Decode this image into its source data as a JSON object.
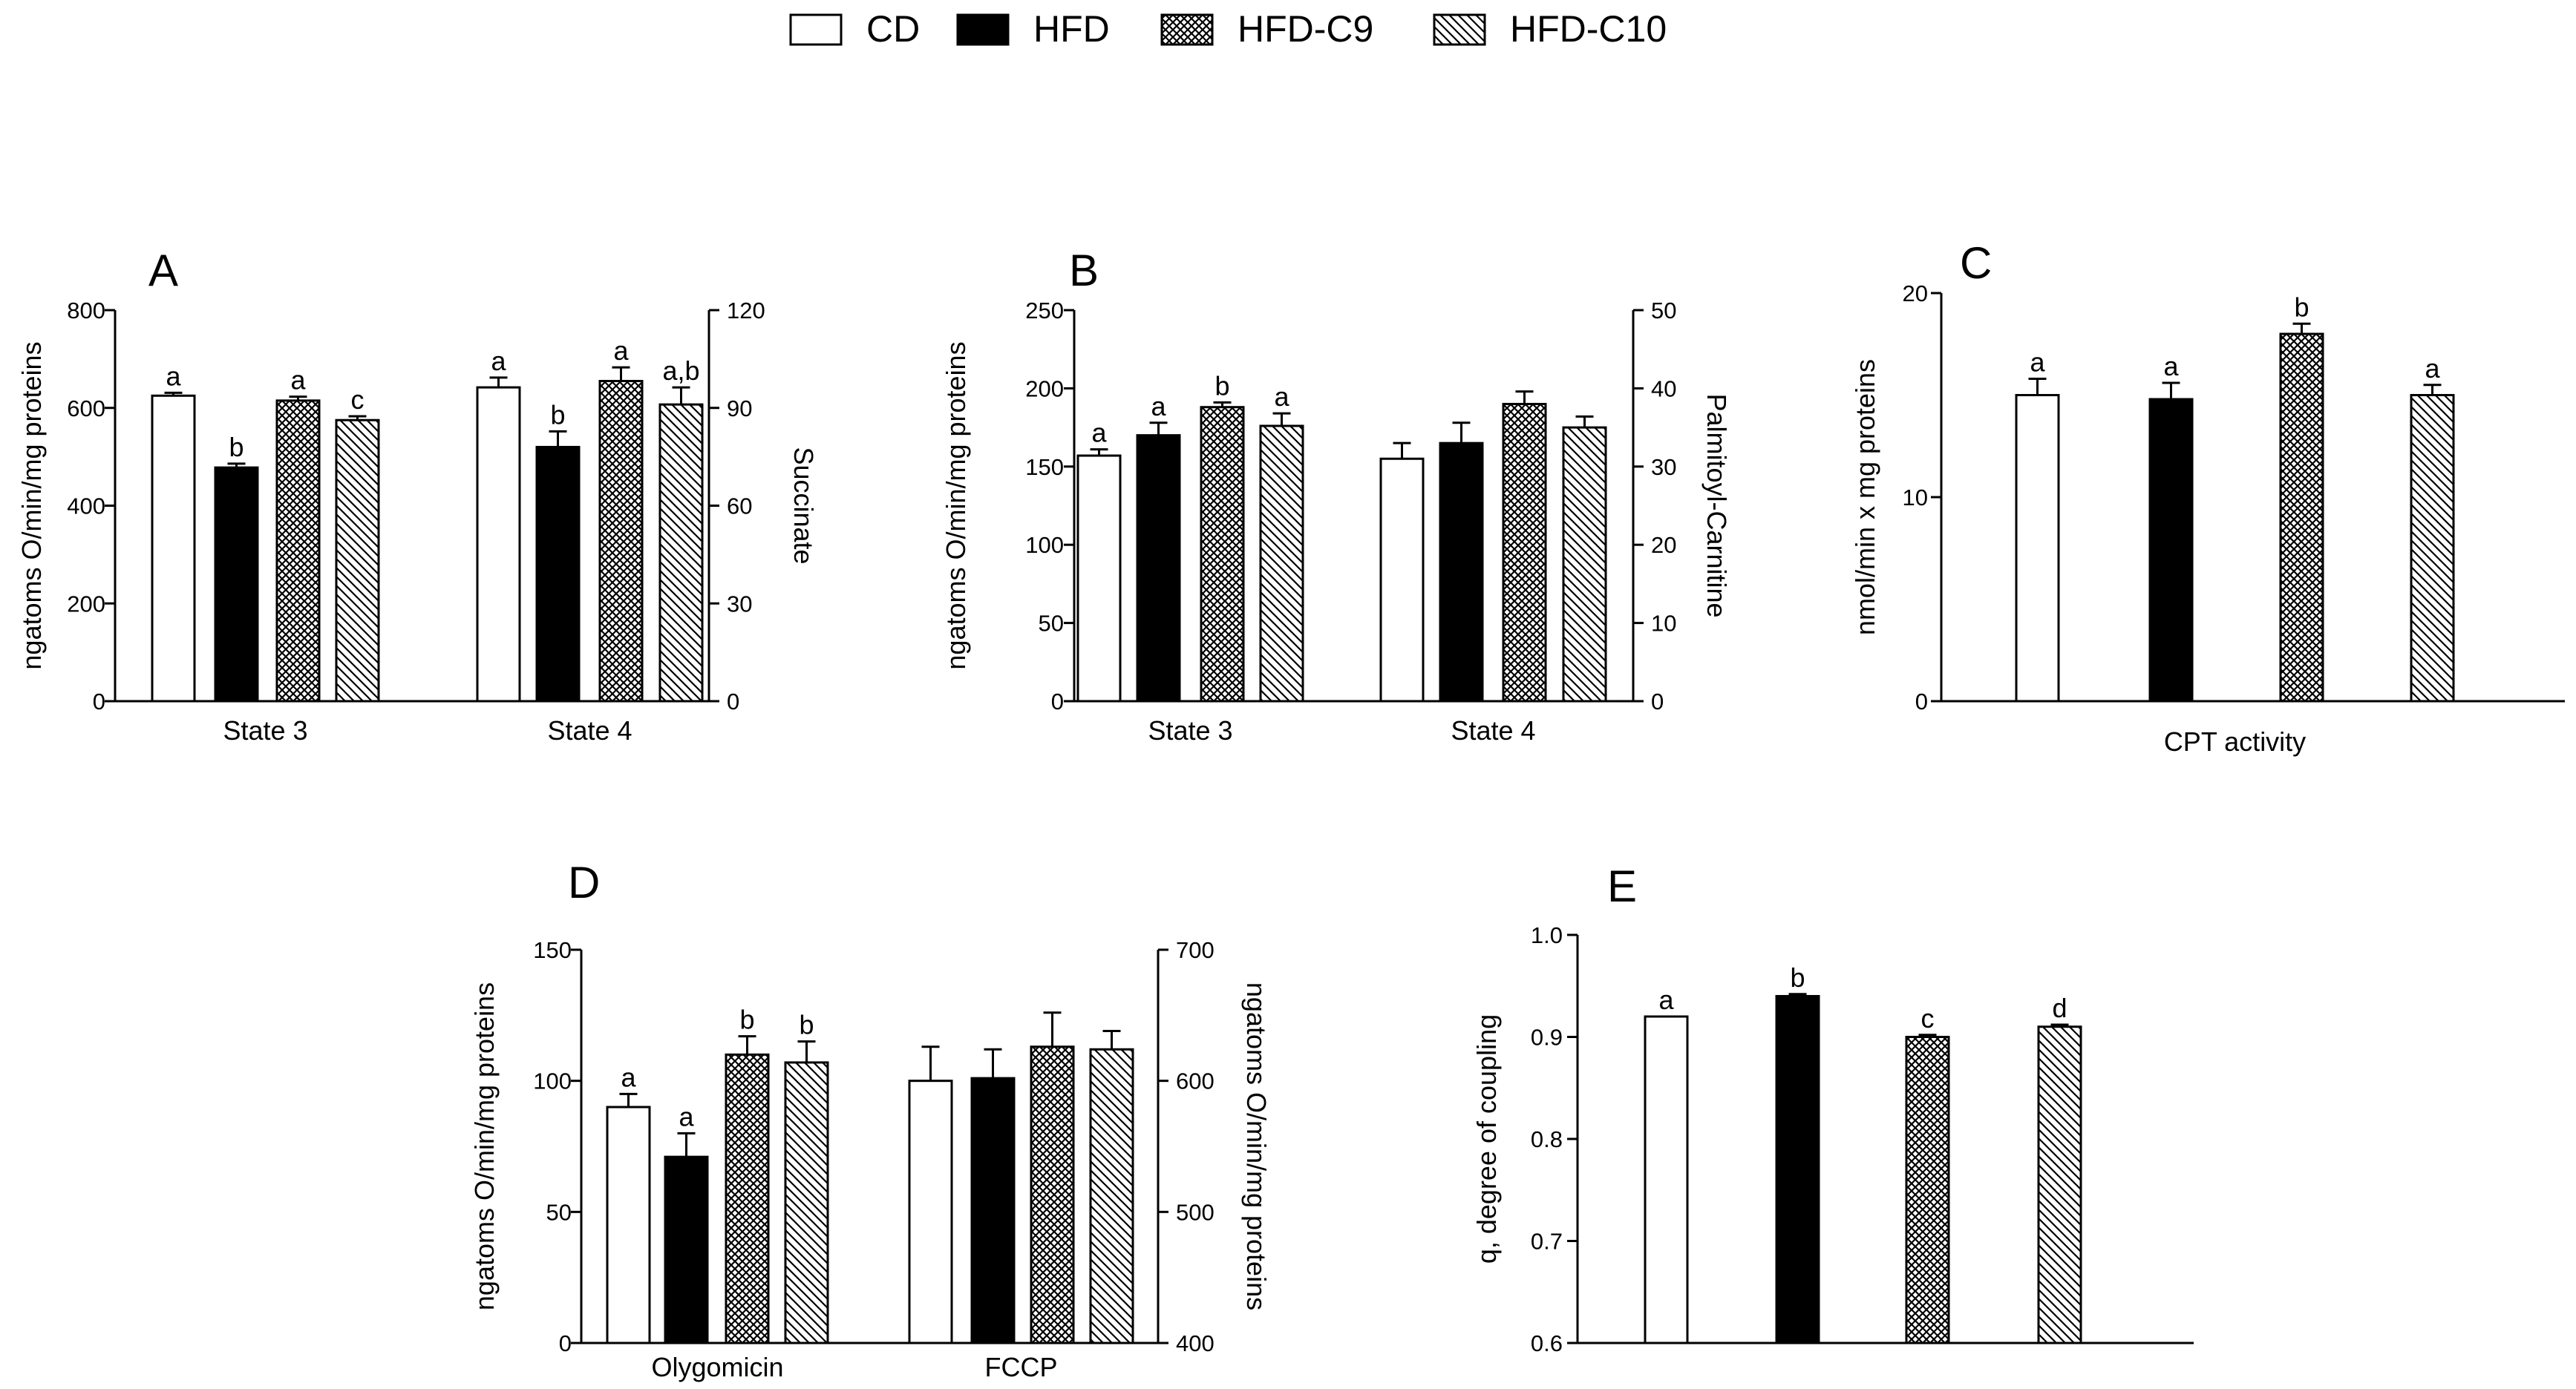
{
  "legend": [
    {
      "name": "CD",
      "fill": "white"
    },
    {
      "name": "HFD",
      "fill": "black"
    },
    {
      "name": "HFD-C9",
      "fill": "crosshatch"
    },
    {
      "name": "HFD-C10",
      "fill": "diagonal"
    }
  ],
  "colors": {
    "ink": "#000000",
    "background": "#ffffff"
  },
  "chart_data": [
    {
      "panel": "A",
      "type": "bar",
      "categories": [
        "State 3",
        "State 4"
      ],
      "ylabel": "ngatoms O/min/mg proteins",
      "ylim": [
        0,
        800
      ],
      "yticks": [
        0,
        200,
        400,
        600,
        800
      ],
      "y2label": "Succinate",
      "y2lim": [
        0,
        120
      ],
      "y2ticks": [
        0,
        30,
        60,
        90,
        120
      ],
      "series": [
        {
          "name": "CD",
          "values": [
            625,
            642
          ],
          "errors": [
            6,
            20
          ],
          "letters": [
            "a",
            "a"
          ]
        },
        {
          "name": "HFD",
          "values": [
            478,
            520
          ],
          "errors": [
            8,
            32
          ],
          "letters": [
            "b",
            "b"
          ]
        },
        {
          "name": "HFD-C9",
          "values": [
            615,
            655
          ],
          "errors": [
            8,
            28
          ],
          "letters": [
            "a",
            "a"
          ]
        },
        {
          "name": "HFD-C10",
          "values": [
            575,
            607
          ],
          "errors": [
            8,
            35
          ],
          "letters": [
            "c",
            "a,b"
          ]
        }
      ]
    },
    {
      "panel": "B",
      "type": "bar",
      "categories": [
        "State 3",
        "State 4"
      ],
      "ylabel": "ngatoms O/min/mg proteins",
      "ylim": [
        0,
        250
      ],
      "yticks": [
        0,
        50,
        100,
        150,
        200,
        250
      ],
      "y2label": "Palmitoyl-Carnitine",
      "y2lim": [
        0,
        50
      ],
      "y2ticks": [
        0,
        10,
        20,
        30,
        40,
        50
      ],
      "series": [
        {
          "name": "CD",
          "values": [
            157,
            155
          ],
          "errors": [
            4,
            10
          ],
          "letters": [
            "a",
            ""
          ]
        },
        {
          "name": "HFD",
          "values": [
            170,
            165
          ],
          "errors": [
            8,
            13
          ],
          "letters": [
            "a",
            ""
          ]
        },
        {
          "name": "HFD-C9",
          "values": [
            188,
            190
          ],
          "errors": [
            3,
            8
          ],
          "letters": [
            "b",
            ""
          ]
        },
        {
          "name": "HFD-C10",
          "values": [
            176,
            175
          ],
          "errors": [
            8,
            7
          ],
          "letters": [
            "a",
            ""
          ]
        }
      ]
    },
    {
      "panel": "C",
      "type": "bar",
      "categories": [
        ""
      ],
      "xlabel": "CPT activity",
      "ylabel": "nmol/min x mg proteins",
      "ylim": [
        0,
        20
      ],
      "yticks": [
        0,
        10,
        20
      ],
      "series": [
        {
          "name": "CD",
          "values": [
            15.0
          ],
          "errors": [
            0.8
          ],
          "letters": [
            "a"
          ]
        },
        {
          "name": "HFD",
          "values": [
            14.8
          ],
          "errors": [
            0.8
          ],
          "letters": [
            "a"
          ]
        },
        {
          "name": "HFD-C9",
          "values": [
            18.0
          ],
          "errors": [
            0.5
          ],
          "letters": [
            "b"
          ]
        },
        {
          "name": "HFD-C10",
          "values": [
            15.0
          ],
          "errors": [
            0.5
          ],
          "letters": [
            "a"
          ]
        }
      ]
    },
    {
      "panel": "D",
      "type": "bar",
      "categories": [
        "Olygomicin",
        "FCCP"
      ],
      "ylabel": "ngatoms O/min/mg proteins",
      "ylim": [
        0,
        150
      ],
      "yticks": [
        0,
        50,
        100,
        150
      ],
      "y2label": "ngatoms O/min/mg proteins",
      "y2lim": [
        400,
        700
      ],
      "y2ticks": [
        400,
        500,
        600,
        700
      ],
      "series": [
        {
          "name": "CD",
          "values": [
            90,
            100
          ],
          "errors": [
            5,
            13
          ],
          "letters": [
            "a",
            ""
          ]
        },
        {
          "name": "HFD",
          "values": [
            71,
            101
          ],
          "errors": [
            9,
            11
          ],
          "letters": [
            "a",
            ""
          ]
        },
        {
          "name": "HFD-C9",
          "values": [
            110,
            113
          ],
          "errors": [
            7,
            13
          ],
          "letters": [
            "b",
            ""
          ]
        },
        {
          "name": "HFD-C10",
          "values": [
            107,
            112
          ],
          "errors": [
            8,
            7
          ],
          "letters": [
            "b",
            ""
          ]
        }
      ]
    },
    {
      "panel": "E",
      "type": "bar",
      "categories": [
        ""
      ],
      "ylabel": "q, degree of coupling",
      "ylim": [
        0.6,
        1.0
      ],
      "yticks": [
        "0.6",
        "0.7",
        "0.8",
        "0.9",
        "1.0"
      ],
      "series": [
        {
          "name": "CD",
          "values": [
            0.92
          ],
          "errors": [
            0
          ],
          "letters": [
            "a"
          ]
        },
        {
          "name": "HFD",
          "values": [
            0.94
          ],
          "errors": [
            0.002
          ],
          "letters": [
            "b"
          ]
        },
        {
          "name": "HFD-C9",
          "values": [
            0.9
          ],
          "errors": [
            0.002
          ],
          "letters": [
            "c"
          ]
        },
        {
          "name": "HFD-C10",
          "values": [
            0.91
          ],
          "errors": [
            0.002
          ],
          "letters": [
            "d"
          ]
        }
      ]
    }
  ]
}
